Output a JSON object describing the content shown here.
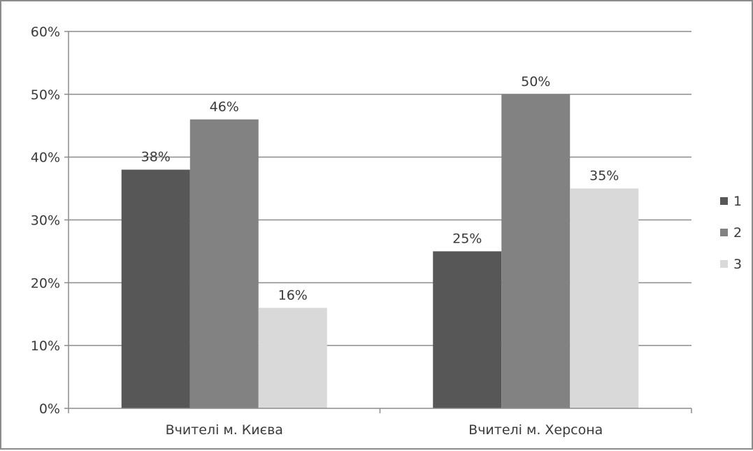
{
  "chart_data": {
    "type": "bar",
    "title": "",
    "xlabel": "",
    "ylabel": "",
    "categories": [
      "Вчителі м. Києва",
      "Вчителі м. Херсона"
    ],
    "series": [
      {
        "name": "1",
        "values": [
          38,
          25
        ],
        "color": "#575757"
      },
      {
        "name": "2",
        "values": [
          46,
          50
        ],
        "color": "#828282"
      },
      {
        "name": "3",
        "values": [
          16,
          35
        ],
        "color": "#d9d9d9"
      }
    ],
    "value_labels": [
      [
        "38%",
        "25%"
      ],
      [
        "46%",
        "50%"
      ],
      [
        "16%",
        "35%"
      ]
    ],
    "ylim": [
      0,
      60
    ],
    "yticks": [
      0,
      10,
      20,
      30,
      40,
      50,
      60
    ],
    "ytick_labels": [
      "0%",
      "10%",
      "20%",
      "30%",
      "40%",
      "50%",
      "60%"
    ],
    "grid": true,
    "legend_position": "right",
    "colors": {
      "gridline": "#8c8c8c",
      "axis": "#8c8c8c",
      "text": "#3a3a3a"
    }
  }
}
